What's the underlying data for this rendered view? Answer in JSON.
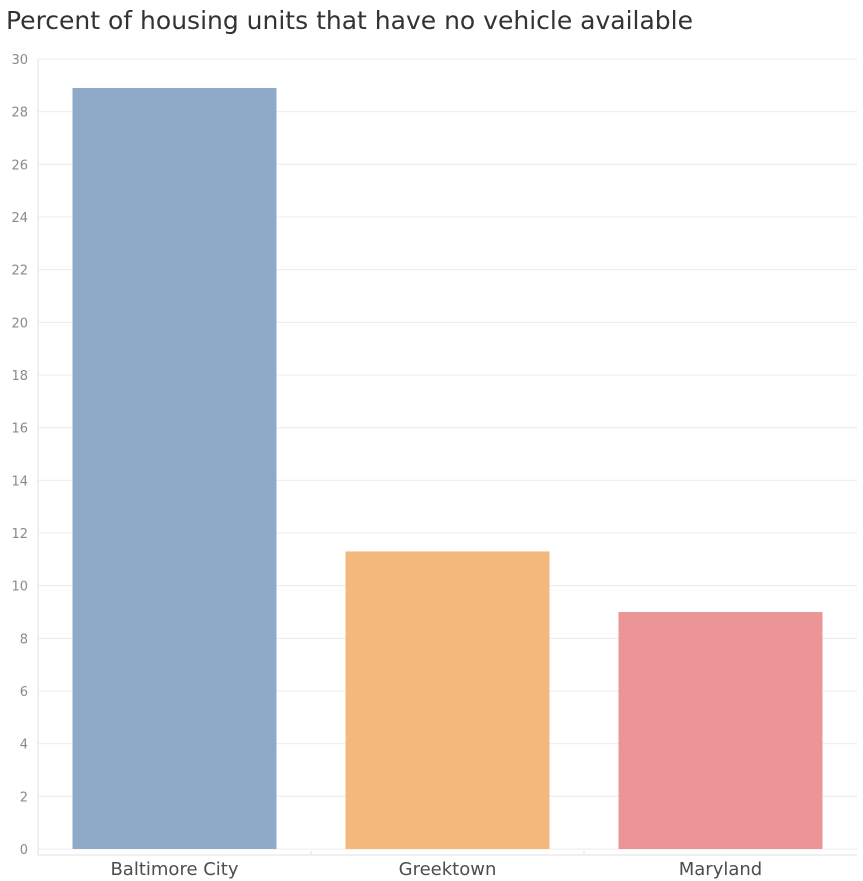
{
  "chart_data": {
    "type": "bar",
    "title": "Percent of housing units that have no vehicle available",
    "xlabel": "",
    "ylabel": "",
    "categories": [
      "Baltimore City",
      "Greektown",
      "Maryland"
    ],
    "values": [
      28.9,
      11.3,
      9.0
    ],
    "colors": [
      "#8eaac8",
      "#f4b87c",
      "#ec9597"
    ],
    "ylim": [
      0,
      30
    ],
    "yticks": [
      0,
      2,
      4,
      6,
      8,
      10,
      12,
      14,
      16,
      18,
      20,
      22,
      24,
      26,
      28,
      30
    ],
    "grid": true,
    "legend": "none"
  }
}
